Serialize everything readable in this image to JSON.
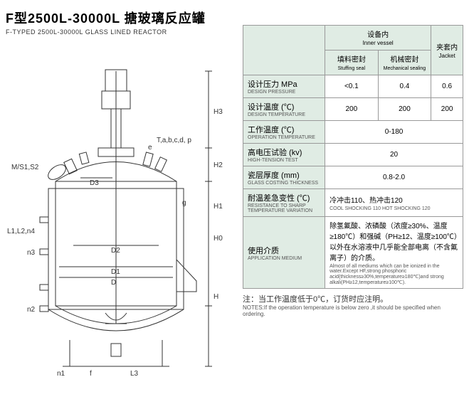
{
  "title": {
    "cn": "F型2500L-30000L 搪玻璃反应罐",
    "en": "F-TYPED 2500L-30000L GLASS LINED REACTOR"
  },
  "table": {
    "header": {
      "inner_vessel_cn": "设备内",
      "inner_vessel_en": "Inner vessel",
      "jacket_cn": "夹套内",
      "jacket_en": "Jacket",
      "stuffing_cn": "填料密封",
      "stuffing_en": "Stuffing seal",
      "mechanical_cn": "机械密封",
      "mechanical_en": "Mechanical sealing"
    },
    "rows": [
      {
        "label_cn": "设计压力 MPa",
        "label_en": "DESIGN PRESSURE",
        "v1": "<0.1",
        "v2": "0.4",
        "v3": "0.6"
      },
      {
        "label_cn": "设计温度 (℃)",
        "label_en": "DESIGN TEMPERATURE",
        "v1": "200",
        "v2": "200",
        "v3": "200"
      },
      {
        "label_cn": "工作温度 (℃)",
        "label_en": "OPERATION TEMPERATURE",
        "span": "0-180"
      },
      {
        "label_cn": "高电压试验 (kv)",
        "label_en": "HIGH-TENSION TEST",
        "span": "20"
      },
      {
        "label_cn": "瓷层厚度 (mm)",
        "label_en": "GLASS COSTING THICKNESS",
        "span": "0.8-2.0"
      },
      {
        "label_cn": "耐温差急变性 (℃)",
        "label_en": "RESISTANCE TO SHARP TEMPERATURE VARIATION",
        "span_cn": "冷冲击110、热冲击120",
        "span_en": "COOL SHOCKING 110 HOT SHOCKING 120"
      },
      {
        "label_cn": "使用介质",
        "label_en": "APPLICATION MEDIUM",
        "span_cn": "除氢氟酸、浓磷酸（浓度≥30%、温度≥180℃）和强碱（PH≥12、温度≥100℃）以外在水溶液中几乎能全部电离（不含氟离子）的介质。",
        "span_en": "Almost of all mediums which can be ionized in the water.Except HF,strong phosphoric acid(thickness≥30%,temperature≥180℃)and strong alkali(PH≥12,temperature≥100℃)."
      }
    ]
  },
  "notes": {
    "cn": "注：当工作温度低于0℃，订货时应注明。",
    "en": "NOTES:If the operation temperature is below zero ,it should be specified when ordering."
  },
  "diagram_labels": {
    "ms": "M/S1,S2",
    "l": "L1,L2,n4",
    "n3": "n3",
    "n2": "n2",
    "n1": "n1",
    "f": "f",
    "L3": "L3",
    "D": "D",
    "D1": "D1",
    "D2": "D2",
    "D3": "D3",
    "e": "e",
    "g": "g",
    "T": "T,a,b,c,d, p",
    "H": "H",
    "H0": "H0",
    "H1": "H1",
    "H2": "H2",
    "H3": "H3"
  },
  "diagram_style": {
    "stroke": "#333333",
    "sw": 1,
    "font_size": 10
  }
}
